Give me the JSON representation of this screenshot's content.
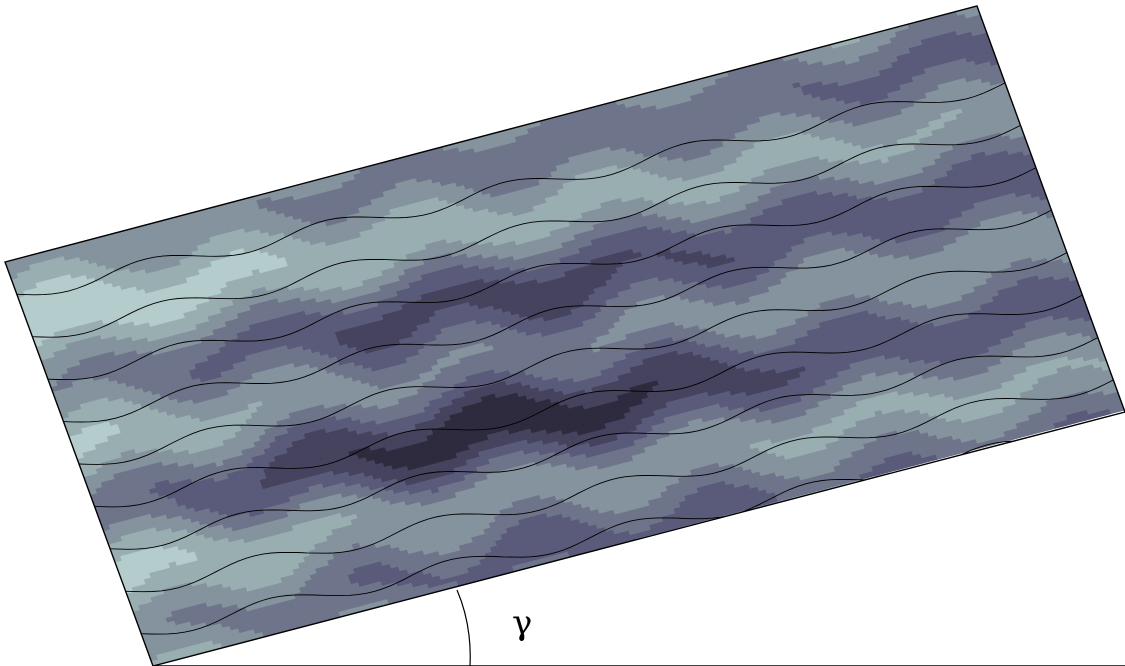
{
  "figure": {
    "angle_label": "γ",
    "colors": {
      "levels": [
        "#ffffff",
        "#d7e5e5",
        "#b5cccc",
        "#99aeb1",
        "#84939d",
        "#6e748a",
        "#5a5a7a",
        "#45435e",
        "#2e2b3f",
        "#1a1725",
        "#050508"
      ],
      "line": "#000000",
      "background": "#ffffff"
    }
  }
}
